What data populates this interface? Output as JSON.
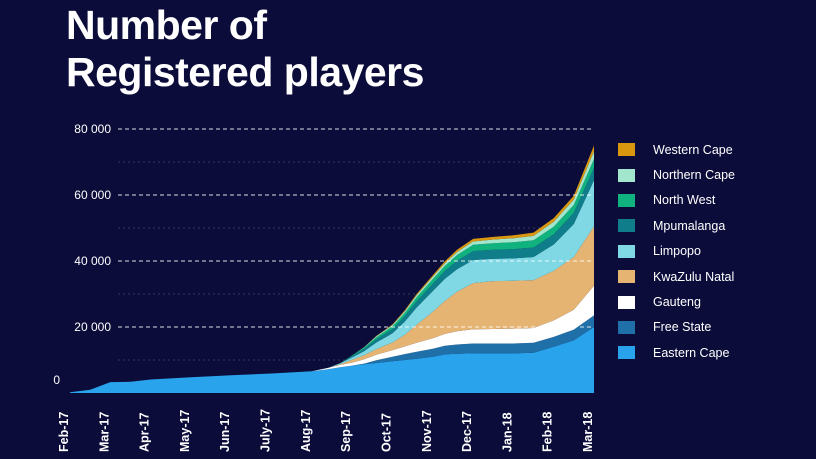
{
  "title": {
    "line1": "Number of",
    "line2": "Registered players"
  },
  "chart_data": {
    "type": "area",
    "stacked": true,
    "title": "Number of Registered players",
    "xlabel": "",
    "ylabel": "",
    "ylim": [
      0,
      80000
    ],
    "yticks": [
      0,
      20000,
      40000,
      60000,
      80000
    ],
    "ytick_labels": [
      "0",
      "20 000",
      "40 000",
      "60 000",
      "80 000"
    ],
    "xticks": [
      "Feb-17",
      "Mar-17",
      "Apr-17",
      "May-17",
      "Jun-17",
      "July-17",
      "Aug-17",
      "Sep-17",
      "Oct-17",
      "Nov-17",
      "Dec-17",
      "Jan-18",
      "Feb-18",
      "Mar-18"
    ],
    "x": [
      0,
      0.5,
      1,
      1.5,
      2,
      3,
      4,
      5,
      6,
      6.4,
      6.7,
      7,
      7.3,
      7.6,
      8,
      8.3,
      8.6,
      9,
      9.3,
      9.6,
      10,
      10.5,
      11,
      11.5,
      12,
      12.5,
      13
    ],
    "series": [
      {
        "name": "Eastern Cape",
        "color": "#29a3ec",
        "values": [
          200,
          1000,
          3300,
          3400,
          4100,
          4800,
          5400,
          5900,
          6600,
          7200,
          7800,
          8300,
          8700,
          9100,
          9600,
          10000,
          10400,
          11000,
          11700,
          11900,
          12000,
          12000,
          12000,
          12200,
          14000,
          16000,
          20000
        ]
      },
      {
        "name": "Free State",
        "color": "#1f6fa8",
        "values": [
          0,
          0,
          0,
          0,
          0,
          0,
          0,
          0,
          0,
          0,
          0,
          0,
          200,
          800,
          1400,
          1800,
          2100,
          2400,
          2600,
          2800,
          3000,
          3000,
          3000,
          3000,
          3000,
          3200,
          3500
        ]
      },
      {
        "name": "Gauteng",
        "color": "#ffffff",
        "values": [
          0,
          0,
          0,
          0,
          0,
          0,
          0,
          0,
          0,
          400,
          700,
          900,
          1300,
          1700,
          2000,
          2300,
          2700,
          3200,
          3600,
          4000,
          4300,
          4400,
          4500,
          4500,
          5000,
          6000,
          9000
        ]
      },
      {
        "name": "KwaZulu Natal",
        "color": "#e5b473",
        "values": [
          0,
          0,
          0,
          0,
          0,
          0,
          0,
          0,
          0,
          0,
          200,
          900,
          1300,
          1700,
          2300,
          3500,
          5500,
          8000,
          10000,
          12000,
          14000,
          14500,
          14500,
          14500,
          15000,
          16000,
          18000
        ]
      },
      {
        "name": "Limpopo",
        "color": "#7fd8e3",
        "values": [
          0,
          0,
          0,
          0,
          0,
          0,
          0,
          0,
          0,
          0,
          300,
          700,
          1200,
          2000,
          2800,
          4000,
          5200,
          6300,
          6700,
          6800,
          7000,
          6800,
          6800,
          7000,
          8000,
          10000,
          14000
        ]
      },
      {
        "name": "Mpumalanga",
        "color": "#0f7e8a",
        "values": [
          0,
          0,
          0,
          0,
          0,
          0,
          0,
          0,
          0,
          0,
          0,
          400,
          700,
          1000,
          1300,
          1600,
          1900,
          2200,
          2400,
          2600,
          2700,
          2700,
          2800,
          2900,
          3100,
          3400,
          3800
        ]
      },
      {
        "name": "North West",
        "color": "#10b37e",
        "values": [
          0,
          0,
          0,
          0,
          0,
          0,
          0,
          0,
          0,
          0,
          0,
          200,
          400,
          600,
          800,
          1000,
          1200,
          1400,
          1500,
          1700,
          1900,
          2000,
          2100,
          2200,
          2300,
          2400,
          2600
        ]
      },
      {
        "name": "Northern Cape",
        "color": "#a2e6cd",
        "values": [
          0,
          0,
          0,
          0,
          0,
          0,
          0,
          0,
          0,
          0,
          0,
          0,
          100,
          300,
          400,
          500,
          600,
          700,
          800,
          900,
          1000,
          1100,
          1200,
          1300,
          1500,
          1600,
          2300
        ]
      },
      {
        "name": "Western Cape",
        "color": "#d9970f",
        "values": [
          0,
          0,
          0,
          0,
          0,
          0,
          0,
          0,
          0,
          0,
          0,
          0,
          0,
          100,
          200,
          300,
          400,
          500,
          600,
          700,
          800,
          800,
          900,
          1000,
          1100,
          1200,
          1800
        ]
      }
    ],
    "legend_order": [
      "Western Cape",
      "Northern Cape",
      "North West",
      "Mpumalanga",
      "Limpopo",
      "KwaZulu Natal",
      "Gauteng",
      "Free State",
      "Eastern Cape"
    ],
    "grid": "dashed horizontal",
    "legend_position": "right"
  }
}
